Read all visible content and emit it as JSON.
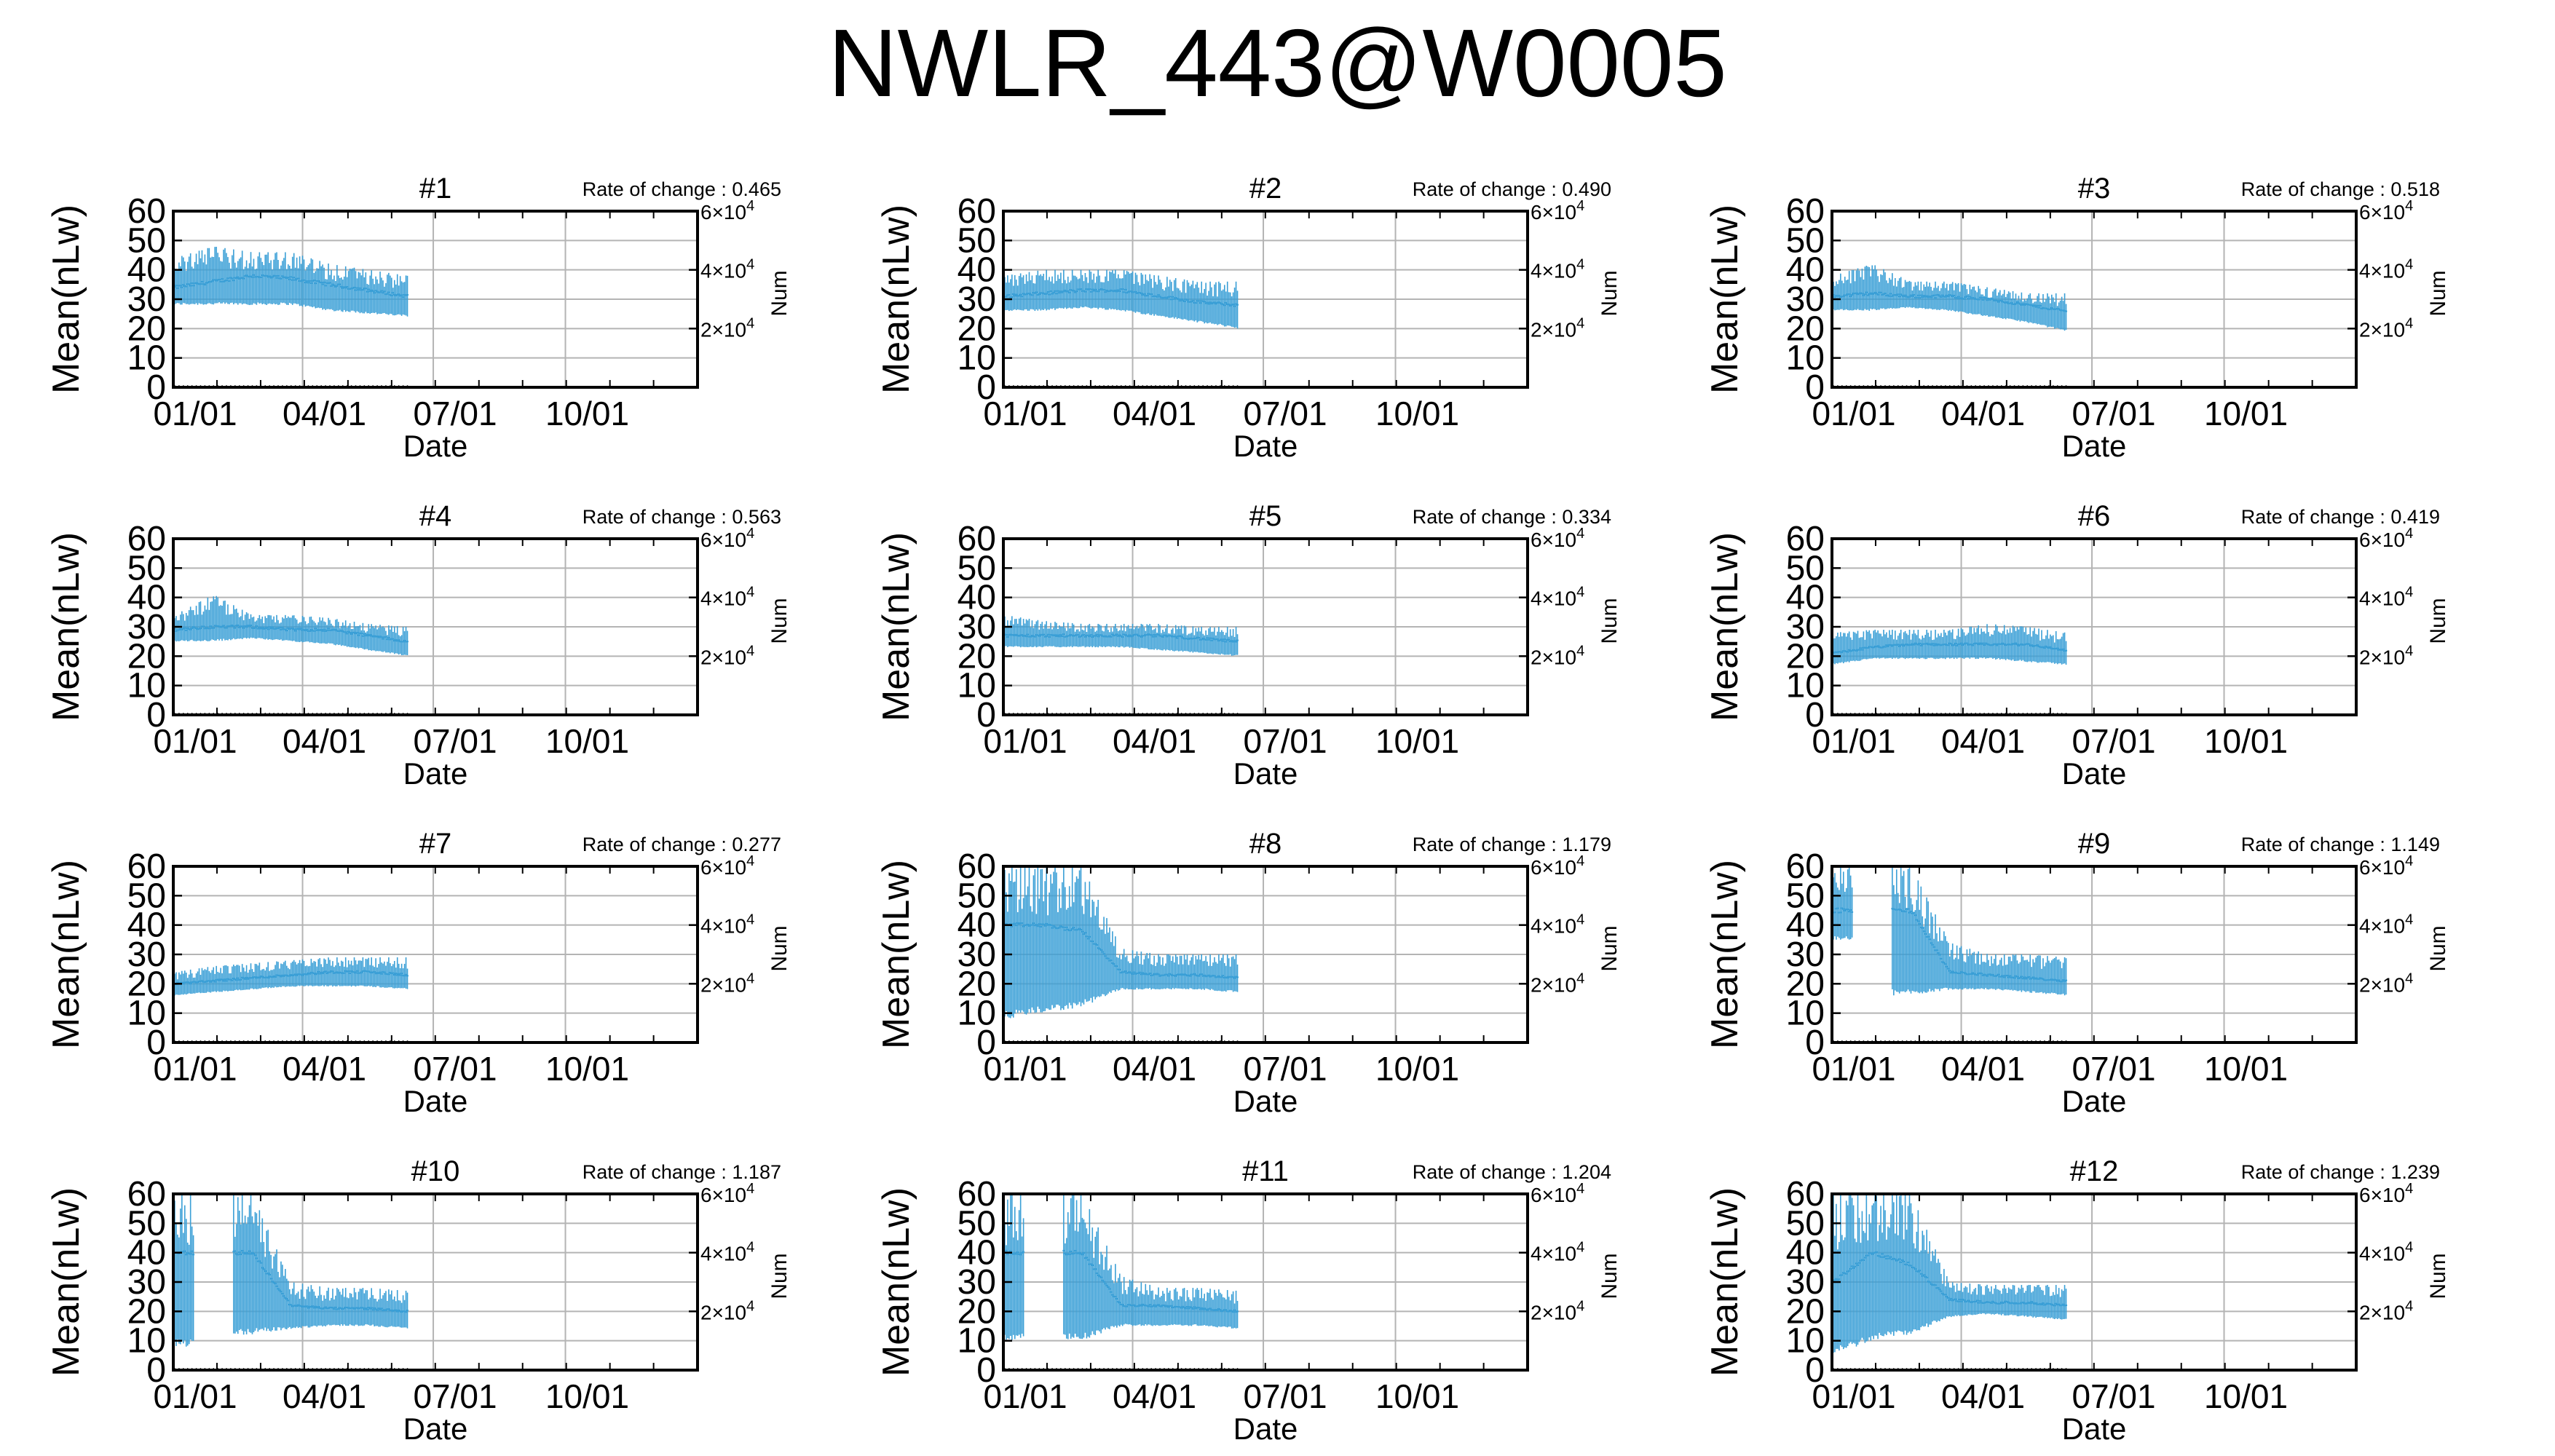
{
  "figure": {
    "title": "NWLR_443@W0005",
    "ylabel": "Mean(nLw)",
    "xlabel": "Date",
    "y2label": "Num",
    "rate_prefix": "Rate of change : ",
    "yticks": [
      "0",
      "10",
      "20",
      "30",
      "40",
      "50",
      "60"
    ],
    "xticks": [
      "01/01",
      "04/01",
      "07/01",
      "10/01"
    ],
    "y2ticks": [
      {
        "base": "2×10",
        "exp": "4"
      },
      {
        "base": "4×10",
        "exp": "4"
      },
      {
        "base": "6×10",
        "exp": "4"
      }
    ],
    "colors": {
      "series": "#3a9fd6",
      "grid": "#b4b4b4",
      "axis": "#000000"
    }
  },
  "chart_data": [
    {
      "type": "scatter",
      "title": "#1",
      "rate": "0.465",
      "x": "date (days of year)",
      "ylim": [
        0,
        60
      ],
      "y2lim": [
        0,
        60000
      ],
      "xlim": [
        "01/01",
        "12/31"
      ],
      "grid": true,
      "series": [
        {
          "x_range": [
            1,
            163
          ],
          "mean": [
            34,
            36,
            38,
            37,
            35,
            33,
            31
          ],
          "spread": [
            [
              28,
              44
            ],
            [
              28,
              48
            ],
            [
              28,
              46
            ],
            [
              28,
              46
            ],
            [
              26,
              42
            ],
            [
              25,
              40
            ],
            [
              24,
              38
            ]
          ]
        }
      ]
    },
    {
      "type": "scatter",
      "title": "#2",
      "rate": "0.490",
      "ylim": [
        0,
        60
      ],
      "y2lim": [
        0,
        60000
      ],
      "grid": true,
      "series": [
        {
          "x_range": [
            1,
            163
          ],
          "mean": [
            31,
            32,
            33,
            33,
            31,
            29,
            28
          ],
          "spread": [
            [
              26,
              38
            ],
            [
              26,
              40
            ],
            [
              27,
              40
            ],
            [
              26,
              40
            ],
            [
              24,
              38
            ],
            [
              22,
              36
            ],
            [
              20,
              36
            ]
          ]
        }
      ]
    },
    {
      "type": "scatter",
      "title": "#3",
      "rate": "0.518",
      "ylim": [
        0,
        60
      ],
      "y2lim": [
        0,
        60000
      ],
      "grid": true,
      "series": [
        {
          "x_range": [
            1,
            163
          ],
          "mean": [
            31,
            32,
            31,
            31,
            30,
            28,
            26
          ],
          "spread": [
            [
              26,
              38
            ],
            [
              26,
              42
            ],
            [
              27,
              36
            ],
            [
              26,
              36
            ],
            [
              24,
              34
            ],
            [
              22,
              32
            ],
            [
              19,
              32
            ]
          ]
        }
      ]
    },
    {
      "type": "scatter",
      "title": "#4",
      "rate": "0.563",
      "ylim": [
        0,
        60
      ],
      "y2lim": [
        0,
        60000
      ],
      "grid": true,
      "series": [
        {
          "x_range": [
            1,
            163
          ],
          "mean": [
            29,
            30,
            30,
            29,
            29,
            27,
            25
          ],
          "spread": [
            [
              25,
              34
            ],
            [
              25,
              41
            ],
            [
              26,
              34
            ],
            [
              25,
              34
            ],
            [
              24,
              33
            ],
            [
              22,
              31
            ],
            [
              20,
              30
            ]
          ]
        }
      ]
    },
    {
      "type": "scatter",
      "title": "#5",
      "rate": "0.334",
      "ylim": [
        0,
        60
      ],
      "y2lim": [
        0,
        60000
      ],
      "grid": true,
      "series": [
        {
          "x_range": [
            1,
            163
          ],
          "mean": [
            27,
            27,
            27,
            27,
            27,
            26,
            25
          ],
          "spread": [
            [
              23,
              34
            ],
            [
              23,
              32
            ],
            [
              23,
              31
            ],
            [
              23,
              31
            ],
            [
              22,
              31
            ],
            [
              21,
              30
            ],
            [
              20,
              30
            ]
          ]
        }
      ]
    },
    {
      "type": "scatter",
      "title": "#6",
      "rate": "0.419",
      "ylim": [
        0,
        60
      ],
      "y2lim": [
        0,
        60000
      ],
      "grid": true,
      "series": [
        {
          "x_range": [
            1,
            163
          ],
          "mean": [
            21,
            23,
            24,
            24,
            24,
            24,
            22
          ],
          "spread": [
            [
              17,
              28
            ],
            [
              19,
              29
            ],
            [
              19,
              29
            ],
            [
              19,
              29
            ],
            [
              19,
              31
            ],
            [
              18,
              30
            ],
            [
              17,
              28
            ]
          ]
        }
      ]
    },
    {
      "type": "scatter",
      "title": "#7",
      "rate": "0.277",
      "ylim": [
        0,
        60
      ],
      "y2lim": [
        0,
        60000
      ],
      "grid": true,
      "series": [
        {
          "x_range": [
            1,
            163
          ],
          "mean": [
            20,
            21,
            22,
            23,
            24,
            24,
            23
          ],
          "spread": [
            [
              16,
              24
            ],
            [
              17,
              26
            ],
            [
              18,
              27
            ],
            [
              19,
              28
            ],
            [
              19,
              29
            ],
            [
              19,
              29
            ],
            [
              18,
              29
            ]
          ]
        }
      ]
    },
    {
      "type": "scatter",
      "title": "#8",
      "rate": "1.179",
      "ylim": [
        0,
        60
      ],
      "y2lim": [
        0,
        60000
      ],
      "grid": true,
      "series": [
        {
          "x_range": [
            1,
            163
          ],
          "mean": [
            40,
            40,
            38,
            24,
            23,
            23,
            22
          ],
          "spread": [
            [
              8,
              60
            ],
            [
              10,
              60
            ],
            [
              12,
              60
            ],
            [
              18,
              32
            ],
            [
              18,
              30
            ],
            [
              18,
              30
            ],
            [
              17,
              30
            ]
          ]
        }
      ]
    },
    {
      "type": "scatter",
      "title": "#9",
      "rate": "1.149",
      "ylim": [
        0,
        60
      ],
      "y2lim": [
        0,
        60000
      ],
      "grid": true,
      "series": [
        {
          "x_range": [
            1,
            163
          ],
          "mean": [
            45,
            null,
            45,
            24,
            23,
            22,
            21
          ],
          "spread": [
            [
              35,
              60
            ],
            null,
            [
              16,
              60
            ],
            [
              18,
              34
            ],
            [
              18,
              30
            ],
            [
              17,
              30
            ],
            [
              16,
              29
            ]
          ]
        }
      ]
    },
    {
      "type": "scatter",
      "title": "#10",
      "rate": "1.187",
      "ylim": [
        0,
        60
      ],
      "y2lim": [
        0,
        60000
      ],
      "grid": true,
      "series": [
        {
          "x_range": [
            1,
            163
          ],
          "mean": [
            40,
            null,
            40,
            22,
            21,
            21,
            20
          ],
          "spread": [
            [
              8,
              60
            ],
            null,
            [
              12,
              60
            ],
            [
              14,
              30
            ],
            [
              15,
              28
            ],
            [
              15,
              28
            ],
            [
              14,
              27
            ]
          ]
        }
      ]
    },
    {
      "type": "scatter",
      "title": "#11",
      "rate": "1.204",
      "ylim": [
        0,
        60
      ],
      "y2lim": [
        0,
        60000
      ],
      "grid": true,
      "series": [
        {
          "x_range": [
            1,
            163
          ],
          "mean": [
            40,
            null,
            40,
            22,
            22,
            21,
            20
          ],
          "spread": [
            [
              10,
              60
            ],
            null,
            [
              10,
              60
            ],
            [
              15,
              32
            ],
            [
              15,
              28
            ],
            [
              15,
              28
            ],
            [
              14,
              27
            ]
          ]
        }
      ]
    },
    {
      "type": "scatter",
      "title": "#12",
      "rate": "1.239",
      "ylim": [
        0,
        60
      ],
      "y2lim": [
        0,
        60000
      ],
      "grid": true,
      "series": [
        {
          "x_range": [
            1,
            163
          ],
          "mean": [
            30,
            40,
            36,
            24,
            23,
            23,
            22
          ],
          "spread": [
            [
              5,
              60
            ],
            [
              10,
              60
            ],
            [
              12,
              60
            ],
            [
              18,
              30
            ],
            [
              19,
              29
            ],
            [
              18,
              29
            ],
            [
              17,
              29
            ]
          ]
        }
      ]
    }
  ]
}
